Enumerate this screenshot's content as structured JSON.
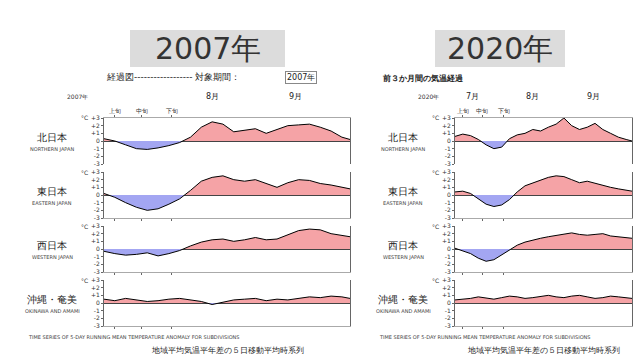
{
  "chart_data": [
    {
      "type": "area",
      "title": "2007年",
      "header": "経過図------------------",
      "header_field": "対象期間：",
      "header_select": "2007年",
      "year_label": "2007年",
      "month_labels": [
        {
          "value": 41,
          "label": "8月"
        },
        {
          "value": 72,
          "label": "9月"
        }
      ],
      "x": [
        1,
        5,
        9,
        13,
        17,
        21,
        25,
        29,
        33,
        37,
        41,
        45,
        49,
        53,
        57,
        61,
        65,
        69,
        73,
        77,
        81,
        85,
        89,
        92
      ],
      "xlim": [
        1,
        92
      ],
      "xticks": [
        {
          "value": 5,
          "label": "上旬"
        },
        {
          "value": 15,
          "label": "中旬"
        },
        {
          "value": 26,
          "label": "下旬"
        }
      ],
      "ylim": [
        -3,
        3
      ],
      "yticks": [
        {
          "value": 3,
          "label": "+3"
        },
        {
          "value": 2,
          "label": "+2"
        },
        {
          "value": 1,
          "label": "+1"
        },
        0,
        -1,
        -2,
        -3
      ],
      "unit": "°C",
      "colors": [
        "#f5a3a6",
        "#a3a6f2"
      ],
      "grid": false,
      "footer": "TIME SERIES OF 5-DAY RUNNING MEAN TEMPERATURE ANOMALY FOR SUBDIVISIONS",
      "footnote": "地域平均気温平年差の５日移動平均時系列",
      "series": [
        {
          "name": "北日本",
          "name_en": "NORTHERN JAPAN",
          "values": [
            0.3,
            0,
            -0.5,
            -1.0,
            -1.1,
            -0.9,
            -0.6,
            -0.2,
            0.5,
            1.8,
            2.5,
            2.2,
            1.2,
            1.4,
            1.6,
            1.0,
            1.5,
            2.0,
            2.1,
            2.2,
            1.8,
            1.3,
            0.5,
            0.2
          ]
        },
        {
          "name": "東日本",
          "name_en": "EASTERN JAPAN",
          "values": [
            0.2,
            -0.3,
            -1.0,
            -1.6,
            -2.0,
            -1.8,
            -1.2,
            -0.5,
            0.6,
            1.8,
            2.3,
            2.5,
            2.0,
            1.8,
            2.0,
            1.5,
            1.0,
            1.6,
            2.0,
            1.9,
            1.5,
            1.3,
            1.0,
            0.8
          ]
        },
        {
          "name": "西日本",
          "name_en": "WESTERN JAPAN",
          "values": [
            -0.3,
            -0.6,
            -0.8,
            -0.7,
            -0.5,
            -0.9,
            -0.6,
            -0.2,
            0.4,
            0.9,
            1.2,
            1.3,
            1.0,
            1.2,
            1.5,
            1.2,
            1.3,
            1.8,
            2.4,
            2.6,
            2.5,
            2.0,
            1.8,
            1.6
          ]
        },
        {
          "name": "沖縄・奄美",
          "name_en": "OKINAWA AND AMAMI",
          "values": [
            0.5,
            0.3,
            0.6,
            0.4,
            0.2,
            0.3,
            0.5,
            0.6,
            0.4,
            0.2,
            -0.2,
            0.1,
            0.4,
            0.5,
            0.6,
            0.3,
            0.5,
            0.4,
            0.6,
            0.8,
            0.7,
            0.9,
            0.8,
            0.6
          ]
        }
      ]
    },
    {
      "type": "area",
      "title": "2020年",
      "header": "前３か月間の気温経過",
      "year_label": "2020年",
      "month_labels": [
        {
          "value": 10,
          "label": "7月"
        },
        {
          "value": 41,
          "label": "8月"
        },
        {
          "value": 72,
          "label": "9月"
        }
      ],
      "x": [
        1,
        5,
        9,
        13,
        17,
        21,
        25,
        29,
        33,
        37,
        41,
        45,
        49,
        53,
        57,
        61,
        65,
        69,
        73,
        77,
        81,
        85,
        89,
        92
      ],
      "xlim": [
        1,
        92
      ],
      "xticks": [
        {
          "value": 5,
          "label": "上旬"
        },
        {
          "value": 15,
          "label": "中旬"
        },
        {
          "value": 26,
          "label": "下旬"
        }
      ],
      "ylim": [
        -3,
        3
      ],
      "yticks": [
        {
          "value": 3,
          "label": "+3"
        },
        {
          "value": 2,
          "label": "+2"
        },
        {
          "value": 1,
          "label": "+1"
        },
        0,
        -1,
        -2,
        -3
      ],
      "unit": "°C",
      "colors": [
        "#f5a3a6",
        "#a3a6f2"
      ],
      "grid": false,
      "footer": "TIME SERIES OF 5-DAY RUNNING MEAN TEMPERATURE ANOMALY FOR SUBDIVISIONS",
      "footnote": "地域平均気温平年差の５日移動平均時系列",
      "series": [
        {
          "name": "北日本",
          "name_en": "NORTHERN JAPAN",
          "values": [
            0.6,
            0.9,
            0.7,
            0.2,
            -0.5,
            -1.0,
            -0.8,
            0.3,
            0.8,
            1.0,
            1.5,
            1.3,
            1.8,
            2.2,
            3.0,
            2.0,
            1.5,
            1.8,
            2.3,
            1.5,
            1.0,
            0.5,
            0.2,
            0
          ]
        },
        {
          "name": "東日本",
          "name_en": "EASTERN JAPAN",
          "values": [
            0.4,
            0.5,
            0.2,
            -0.5,
            -1.2,
            -1.5,
            -1.3,
            -0.6,
            0.4,
            1.2,
            1.6,
            2.0,
            2.3,
            2.5,
            2.4,
            2.0,
            1.6,
            1.8,
            1.5,
            1.2,
            1.0,
            0.8,
            0.6,
            0.5
          ]
        },
        {
          "name": "西日本",
          "name_en": "WESTERN JAPAN",
          "values": [
            0.1,
            -0.2,
            -0.6,
            -1.2,
            -1.6,
            -1.4,
            -0.8,
            -0.2,
            0.5,
            0.9,
            1.2,
            1.4,
            1.6,
            1.8,
            2.0,
            2.1,
            1.9,
            1.8,
            1.9,
            2.0,
            1.7,
            1.6,
            1.5,
            1.4
          ]
        },
        {
          "name": "沖縄・奄美",
          "name_en": "OKINAWA AND AMAMI",
          "values": [
            0.4,
            0.5,
            0.6,
            0.8,
            0.6,
            0.5,
            0.7,
            0.9,
            0.8,
            0.6,
            0.7,
            0.9,
            1.0,
            0.8,
            0.7,
            0.9,
            1.0,
            0.8,
            0.6,
            0.7,
            0.9,
            0.8,
            0.7,
            0.6
          ]
        }
      ]
    }
  ]
}
